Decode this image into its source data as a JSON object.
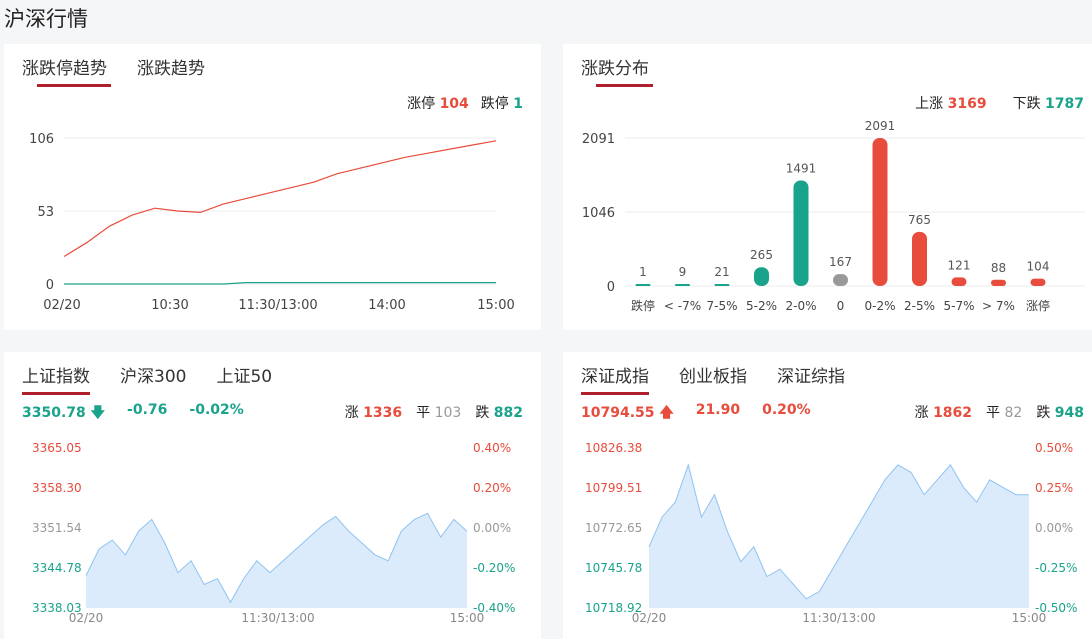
{
  "page_title": "沪深行情",
  "limit_panel": {
    "tabs": [
      "涨跌停趋势",
      "涨跌趋势"
    ],
    "up_label": "涨停",
    "up_value": "104",
    "down_label": "跌停",
    "down_value": "1"
  },
  "dist_panel": {
    "tabs": [
      "涨跌分布"
    ],
    "up_label": "上涨",
    "up_value": "3169",
    "down_label": "下跌",
    "down_value": "1787"
  },
  "sh_panel": {
    "tabs": [
      "上证指数",
      "沪深300",
      "上证50"
    ],
    "price": "3350.78",
    "change": "-0.76",
    "change_pct": "-0.02%",
    "up_label": "涨",
    "up_value": "1336",
    "flat_label": "平",
    "flat_value": "103",
    "down_label": "跌",
    "down_value": "882"
  },
  "sz_panel": {
    "tabs": [
      "深证成指",
      "创业板指",
      "深证综指"
    ],
    "price": "10794.55",
    "change": "21.90",
    "change_pct": "0.20%",
    "up_label": "涨",
    "up_value": "1862",
    "flat_label": "平",
    "flat_value": "82",
    "down_label": "跌",
    "down_value": "948"
  },
  "colors": {
    "red": "#e74c3c",
    "green": "#1aa38b",
    "gray": "#999999",
    "accent": "#b0202c",
    "area": "#dcebfb",
    "area_line": "#8fc3f2"
  },
  "chart_data": [
    {
      "type": "line",
      "yticks": [
        "106",
        "53",
        "0"
      ],
      "xticks": [
        "02/20",
        "10:30",
        "11:30/13:00",
        "14:00",
        "15:00"
      ],
      "ylim": [
        0,
        106
      ],
      "series": [
        {
          "values": [
            20,
            30,
            42,
            50,
            55,
            53,
            52,
            58,
            62,
            66,
            70,
            74,
            80,
            84,
            88,
            92,
            95,
            98,
            101,
            104
          ]
        },
        {
          "values": [
            0,
            0,
            0,
            0,
            0,
            0,
            0,
            0,
            1,
            1,
            1,
            1,
            1,
            1,
            1,
            1,
            1,
            1,
            1,
            1
          ]
        }
      ]
    },
    {
      "type": "bar",
      "yticks": [
        "2091",
        "1046",
        "0"
      ],
      "ylim": [
        0,
        2091
      ],
      "categories": [
        "跌停",
        "< -7%",
        "7-5%",
        "5-2%",
        "2-0%",
        "0",
        "0-2%",
        "2-5%",
        "5-7%",
        "> 7%",
        "涨停"
      ],
      "values": [
        1,
        9,
        21,
        265,
        1491,
        167,
        2091,
        765,
        121,
        88,
        104
      ],
      "labels": [
        "1",
        "9",
        "21",
        "265",
        "1491",
        "167",
        "2091",
        "765",
        "121",
        "88",
        "104"
      ]
    },
    {
      "type": "area",
      "yticks_left": [
        "3365.05",
        "3358.30",
        "3351.54",
        "3344.78",
        "3338.03"
      ],
      "yticks_right": [
        "0.40%",
        "0.20%",
        "0.00%",
        "-0.20%",
        "-0.40%"
      ],
      "xticks": [
        "02/20",
        "11:30/13:00",
        "15:00"
      ],
      "ylim": [
        3338.03,
        3365.05
      ],
      "values": [
        3343.5,
        3348,
        3349.5,
        3347,
        3351,
        3353,
        3349,
        3344,
        3346,
        3342,
        3343,
        3339,
        3343,
        3346,
        3344,
        3346,
        3348,
        3350,
        3352,
        3353.5,
        3351,
        3349,
        3347,
        3346,
        3351,
        3353,
        3354,
        3350,
        3353,
        3351
      ]
    },
    {
      "type": "area",
      "yticks_left": [
        "10826.38",
        "10799.51",
        "10772.65",
        "10745.78",
        "10718.92"
      ],
      "yticks_right": [
        "0.50%",
        "0.25%",
        "0.00%",
        "-0.25%",
        "-0.50%"
      ],
      "xticks": [
        "02/20",
        "11:30/13:00",
        "15:00"
      ],
      "ylim": [
        10718.92,
        10826.38
      ],
      "values": [
        10760,
        10780,
        10790,
        10815,
        10780,
        10795,
        10770,
        10750,
        10760,
        10740,
        10745,
        10735,
        10725,
        10730,
        10745,
        10760,
        10775,
        10790,
        10805,
        10815,
        10810,
        10795,
        10805,
        10815,
        10800,
        10790,
        10805,
        10800,
        10795,
        10795
      ]
    }
  ]
}
